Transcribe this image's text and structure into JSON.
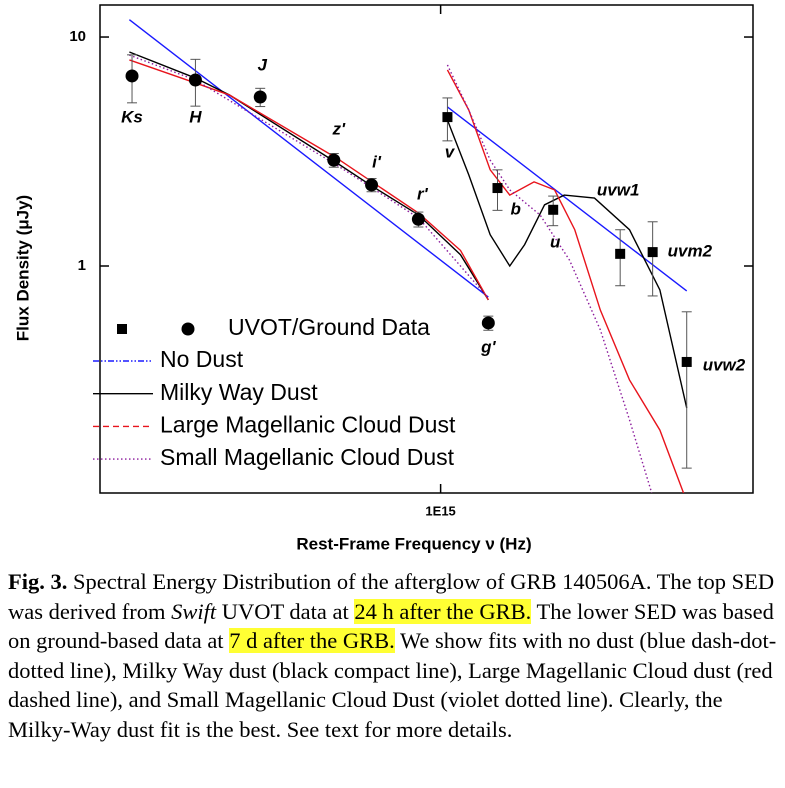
{
  "chart_data": {
    "type": "sed",
    "x_label": "Rest-Frame Frequency ν (Hz)",
    "y_label": "Flux Density (μJy)",
    "xlog": true,
    "ylog": true,
    "xlim": [
      228000000000000.0,
      3880000000000000.0
    ],
    "xticks": [
      {
        "value": 1000000000000000.0,
        "label": "1E15"
      }
    ],
    "ylim": [
      0.102,
      13.8
    ],
    "yticks": [
      1,
      10
    ],
    "data_legend": "UVOT/Ground Data",
    "points": [
      {
        "marker": "circle",
        "color": "#000000",
        "x": [
          262000000000000.0,
          345000000000000.0,
          457000000000000.0,
          629000000000000.0,
          741000000000000.0,
          908000000000000.0,
          1230000000000000.0
        ],
        "values": [
          6.76,
          6.49,
          5.47,
          2.9,
          2.26,
          1.6,
          0.564
        ],
        "errors": [
          1.6,
          1.5,
          0.5,
          0.2,
          0.15,
          0.12,
          0.04
        ],
        "labels": [
          "Ks",
          "H",
          "J",
          "z'",
          "i'",
          "r'",
          "g'"
        ]
      },
      {
        "marker": "square",
        "color": "#000000",
        "x": [
          1030000000000000.0,
          1280000000000000.0,
          1630000000000000.0,
          2180000000000000.0,
          2510000000000000.0,
          2910000000000000.0
        ],
        "values": [
          4.47,
          2.19,
          1.76,
          1.13,
          1.15,
          0.381
        ],
        "errors": [
          0.95,
          0.44,
          0.26,
          0.31,
          0.41,
          0.25
        ],
        "labels": [
          "v",
          "b",
          "u",
          "uvw1",
          "uvm2",
          "uvw2"
        ]
      }
    ],
    "series": [
      {
        "name": "No Dust",
        "color": "#1a1aff",
        "dash": "dashdotdot",
        "x": [
          259000000000000.0,
          1230000000000000.0,
          null,
          1030000000000000.0,
          2910000000000000.0
        ],
        "values": [
          11.9,
          0.732,
          null,
          4.95,
          0.778
        ]
      },
      {
        "name": "Milky Way Dust",
        "color": "#000000",
        "dash": "solid",
        "x": [
          259000000000000.0,
          345000000000000.0,
          400000000000000.0,
          637000000000000.0,
          741000000000000.0,
          909000000000000.0,
          1090000000000000.0,
          1230000000000000.0,
          null,
          1030000000000000.0,
          1130000000000000.0,
          1240000000000000.0,
          1350000000000000.0,
          1440000000000000.0,
          1570000000000000.0,
          1710000000000000.0,
          1950000000000000.0,
          2270000000000000.0,
          2590000000000000.0,
          2910000000000000.0
        ],
        "values": [
          8.6,
          6.62,
          5.58,
          2.82,
          2.24,
          1.67,
          1.12,
          0.711,
          null,
          4.34,
          2.5,
          1.37,
          1.0,
          1.24,
          1.85,
          2.04,
          1.98,
          1.44,
          0.786,
          0.24
        ]
      },
      {
        "name": "Large Magellanic Cloud Dust",
        "color": "#e8141c",
        "dash": "dashed",
        "x": [
          259000000000000.0,
          345000000000000.0,
          400000000000000.0,
          637000000000000.0,
          909000000000000.0,
          1090000000000000.0,
          1230000000000000.0,
          null,
          1030000000000000.0,
          1130000000000000.0,
          1240000000000000.0,
          1350000000000000.0,
          1500000000000000.0,
          1640000000000000.0,
          1790000000000000.0,
          2000000000000000.0,
          2270000000000000.0,
          2590000000000000.0,
          2870000000000000.0
        ],
        "values": [
          7.94,
          6.3,
          5.58,
          2.96,
          1.7,
          1.17,
          0.711,
          null,
          7.18,
          4.8,
          2.63,
          2.04,
          2.33,
          2.15,
          1.44,
          0.642,
          0.318,
          0.192,
          0.102
        ]
      },
      {
        "name": "Small Magellanic Cloud Dust",
        "color": "#8b1a9c",
        "dash": "dotted",
        "x": [
          259000000000000.0,
          345000000000000.0,
          637000000000000.0,
          909000000000000.0,
          1230000000000000.0,
          null,
          1030000000000000.0,
          1130000000000000.0,
          1240000000000000.0,
          1350000000000000.0,
          1540000000000000.0,
          1750000000000000.0,
          2000000000000000.0,
          2270000000000000.0,
          2500000000000000.0
        ],
        "values": [
          8.34,
          6.49,
          2.76,
          1.62,
          0.725,
          null,
          7.55,
          4.8,
          2.9,
          2.15,
          1.67,
          1.06,
          0.526,
          0.213,
          0.102
        ]
      }
    ]
  },
  "caption": {
    "label": "Fig. 3.",
    "parts": [
      {
        "text": " Spectral Energy Distribution of the afterglow of GRB 140506A. The top SED was derived from "
      },
      {
        "text": "Swift",
        "style": "italic"
      },
      {
        "text": " UVOT data at "
      },
      {
        "text": "24 h after the GRB.",
        "style": "highlight"
      },
      {
        "text": " The lower SED was based on ground-based data at "
      },
      {
        "text": "7 d after the GRB.",
        "style": "highlight"
      },
      {
        "text": " We show fits with no dust (blue dash-dot-dotted line), Milky Way dust (black compact line), Large Magellanic Cloud dust (red dashed line), and Small Magellanic Cloud Dust (violet dotted line). Clearly, the Milky-Way dust fit is the best. See text for more details."
      }
    ]
  }
}
